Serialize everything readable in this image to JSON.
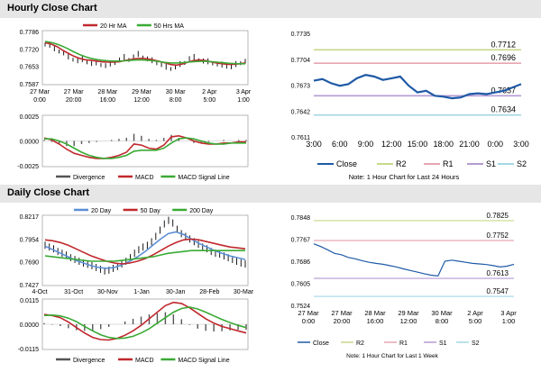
{
  "sections": {
    "hourly_title": "Hourly Close Chart",
    "daily_title": "Daily Close Chart"
  },
  "colors": {
    "close": "#1f5aa6",
    "ma20": "#c0282d",
    "ma50": "#3aaa35",
    "day20": "#5b8fd6",
    "day50": "#c0282d",
    "day200": "#3aaa35",
    "macd": "#c0282d",
    "signal": "#3aaa35",
    "divergence": "#555555",
    "r2": "#c8d98a",
    "r1": "#e7a6b1",
    "s1": "#b59bd3",
    "s2": "#a3d7e6",
    "price_bar": "#000000"
  },
  "chart_data": [
    {
      "id": "hourly_price",
      "type": "line",
      "legend": [
        {
          "name": "20 Hr MA",
          "color": "#c0282d"
        },
        {
          "name": "50 Hrs MA",
          "color": "#3aaa35"
        }
      ],
      "yticks": [
        "0.7786",
        "0.7720",
        "0.7653",
        "0.7587"
      ],
      "ylim": [
        0.7587,
        0.7786
      ],
      "xticks": [
        [
          "27 Mar",
          "0:00"
        ],
        [
          "27 Mar",
          "20:00"
        ],
        [
          "28 Mar",
          "16:00"
        ],
        [
          "29 Mar",
          "12:00"
        ],
        [
          "30 Mar",
          "8:00"
        ],
        [
          "2 Apr",
          "5:00"
        ],
        [
          "3 Apr",
          "1:00"
        ]
      ],
      "series": [
        {
          "name": "Close (bars)",
          "values": [
            0.7738,
            0.7733,
            0.772,
            0.7712,
            0.7705,
            0.769,
            0.7682,
            0.7676,
            0.768,
            0.7672,
            0.7666,
            0.7668,
            0.7662,
            0.7658,
            0.7664,
            0.767,
            0.7679,
            0.7688,
            0.7681,
            0.769,
            0.7699,
            0.769,
            0.7683,
            0.7676,
            0.7669,
            0.7662,
            0.7652,
            0.7648,
            0.7653,
            0.7662,
            0.767,
            0.7684,
            0.7688,
            0.768,
            0.7675,
            0.7672,
            0.7668,
            0.7664,
            0.766,
            0.7656,
            0.7654,
            0.7662,
            0.7669,
            0.7674
          ]
        },
        {
          "name": "20 Hr MA",
          "values": [
            0.7742,
            0.7737,
            0.7728,
            0.7715,
            0.7703,
            0.7692,
            0.7684,
            0.7679,
            0.7677,
            0.7674,
            0.7671,
            0.767,
            0.767,
            0.7672,
            0.7676,
            0.768,
            0.7683,
            0.7684,
            0.7682,
            0.7678,
            0.7673,
            0.7667,
            0.7661,
            0.7659,
            0.7663,
            0.767,
            0.7676,
            0.7678,
            0.7676,
            0.7671,
            0.7667,
            0.7664,
            0.7662,
            0.7662,
            0.7664,
            0.7667
          ]
        },
        {
          "name": "50 Hrs MA",
          "values": [
            0.7746,
            0.7743,
            0.7737,
            0.7729,
            0.7719,
            0.7708,
            0.7698,
            0.769,
            0.7684,
            0.768,
            0.7677,
            0.7675,
            0.7674,
            0.7674,
            0.7675,
            0.7677,
            0.7678,
            0.7678,
            0.7677,
            0.7675,
            0.7672,
            0.7669,
            0.7667,
            0.7667,
            0.7668,
            0.767,
            0.7672,
            0.7673,
            0.7673,
            0.7672,
            0.767,
            0.7668,
            0.7666,
            0.7665,
            0.7664,
            0.7664
          ]
        }
      ]
    },
    {
      "id": "hourly_macd",
      "type": "line",
      "yticks": [
        "0.0025",
        "0.0000",
        "-0.0025"
      ],
      "ylim": [
        -0.0025,
        0.0025
      ],
      "legend": [
        {
          "name": "Divergence",
          "color": "#555555"
        },
        {
          "name": "MACD",
          "color": "#c0282d"
        },
        {
          "name": "MACD Signal Line",
          "color": "#3aaa35"
        }
      ],
      "series": [
        {
          "name": "MACD",
          "values": [
            0.0003,
            0.0001,
            -0.0003,
            -0.0008,
            -0.0012,
            -0.0014,
            -0.0016,
            -0.0017,
            -0.0017,
            -0.0016,
            -0.0014,
            -0.0011,
            -0.0003,
            -0.0004,
            -0.0007,
            -0.0008,
            -0.0004,
            0.0004,
            0.0005,
            0.0003,
            0.0,
            -0.0002,
            -0.0003,
            -0.0003,
            -0.0002,
            -0.0002,
            -0.0001,
            -0.0001
          ]
        },
        {
          "name": "MACD Signal Line",
          "values": [
            0.0002,
            0.0002,
            0.0,
            -0.0003,
            -0.0007,
            -0.0011,
            -0.0014,
            -0.0016,
            -0.0017,
            -0.0017,
            -0.0016,
            -0.0014,
            -0.001,
            -0.0009,
            -0.0009,
            -0.0009,
            -0.0007,
            -0.0002,
            0.0002,
            0.0003,
            0.0002,
            0.0,
            -0.0002,
            -0.0003,
            -0.0003,
            -0.0002,
            -0.0002,
            -0.0002
          ]
        },
        {
          "name": "Divergence",
          "values": [
            0.0001,
            -0.0001,
            -0.0003,
            -0.0005,
            -0.0005,
            -0.0003,
            -0.0002,
            -0.0001,
            0.0,
            0.0001,
            0.0002,
            0.0003,
            0.0007,
            0.0005,
            0.0002,
            0.0001,
            0.0003,
            0.0006,
            0.0003,
            0.0,
            -0.0002,
            -0.0002,
            -0.0001,
            0.0,
            0.0001,
            0.0,
            0.0001,
            0.0001
          ]
        }
      ]
    },
    {
      "id": "hourly_pivot",
      "type": "line",
      "title": "",
      "yticks": [
        "0.7735",
        "0.7704",
        "0.7673",
        "0.7642",
        "0.7611"
      ],
      "ylim": [
        0.7611,
        0.7735
      ],
      "xticks": [
        "3:00",
        "6:00",
        "9:00",
        "12:00",
        "15:00",
        "18:00",
        "21:00",
        "0:00",
        "3:00"
      ],
      "levels": [
        {
          "name": "R2",
          "value": 0.7712,
          "label": "0.7712",
          "color": "#c8d98a"
        },
        {
          "name": "R1",
          "value": 0.7696,
          "label": "0.7696",
          "color": "#e7a6b1"
        },
        {
          "name": "S1",
          "value": 0.7657,
          "label": "0.7657",
          "color": "#b59bd3"
        },
        {
          "name": "S2",
          "value": 0.7634,
          "label": "0.7634",
          "color": "#a3d7e6"
        }
      ],
      "series": [
        {
          "name": "Close",
          "values": [
            0.7675,
            0.7677,
            0.7672,
            0.7669,
            0.7671,
            0.7678,
            0.7682,
            0.768,
            0.7676,
            0.7678,
            0.768,
            0.7669,
            0.7661,
            0.7663,
            0.7657,
            0.7656,
            0.7654,
            0.7655,
            0.7659,
            0.766,
            0.7659,
            0.7661,
            0.7663,
            0.7667,
            0.7671
          ]
        }
      ],
      "legend": [
        "Close",
        "R2",
        "R1",
        "S1",
        "S2"
      ],
      "note": "Note: 1 Hour Chart for Last 24 Hours"
    },
    {
      "id": "daily_price",
      "type": "line",
      "legend": [
        {
          "name": "20 Day",
          "color": "#5b8fd6"
        },
        {
          "name": "50 Day",
          "color": "#c0282d"
        },
        {
          "name": "200 Day",
          "color": "#3aaa35"
        }
      ],
      "yticks": [
        "0.8217",
        "0.7954",
        "0.7690",
        "0.7427"
      ],
      "ylim": [
        0.7427,
        0.8217
      ],
      "xticks": [
        "4-Oct",
        "31-Oct",
        "30-Nov",
        "1-Jan",
        "30-Jan",
        "28-Feb",
        "30-Mar"
      ],
      "series": [
        {
          "name": "Close (bars)",
          "values": [
            0.788,
            0.786,
            0.784,
            0.781,
            0.779,
            0.777,
            0.774,
            0.772,
            0.77,
            0.768,
            0.7665,
            0.765,
            0.763,
            0.761,
            0.759,
            0.76,
            0.762,
            0.764,
            0.767,
            0.77,
            0.774,
            0.779,
            0.783,
            0.786,
            0.788,
            0.792,
            0.798,
            0.805,
            0.812,
            0.816,
            0.813,
            0.806,
            0.801,
            0.798,
            0.795,
            0.792,
            0.789,
            0.786,
            0.784,
            0.781,
            0.779,
            0.778,
            0.776,
            0.774,
            0.772,
            0.77,
            0.768,
            0.767
          ]
        },
        {
          "name": "20 Day",
          "values": [
            0.787,
            0.783,
            0.779,
            0.775,
            0.771,
            0.768,
            0.765,
            0.763,
            0.762,
            0.763,
            0.766,
            0.77,
            0.775,
            0.781,
            0.788,
            0.795,
            0.801,
            0.803,
            0.8,
            0.795,
            0.79,
            0.786,
            0.782,
            0.779,
            0.776,
            0.774,
            0.772
          ]
        },
        {
          "name": "50 Day",
          "values": [
            0.794,
            0.793,
            0.791,
            0.788,
            0.784,
            0.78,
            0.776,
            0.773,
            0.77,
            0.768,
            0.767,
            0.768,
            0.77,
            0.773,
            0.777,
            0.782,
            0.787,
            0.791,
            0.794,
            0.795,
            0.794,
            0.792,
            0.79,
            0.788,
            0.786,
            0.785,
            0.784
          ]
        },
        {
          "name": "200 Day",
          "values": [
            0.776,
            0.775,
            0.774,
            0.773,
            0.772,
            0.771,
            0.77,
            0.77,
            0.77,
            0.77,
            0.771,
            0.772,
            0.773,
            0.774,
            0.775,
            0.777,
            0.779,
            0.78,
            0.781,
            0.782,
            0.782,
            0.782,
            0.782,
            0.782,
            0.782,
            0.782,
            0.782
          ]
        }
      ]
    },
    {
      "id": "daily_macd",
      "type": "line",
      "yticks": [
        "0.0115",
        "0.0000",
        "-0.0115"
      ],
      "ylim": [
        -0.0115,
        0.0115
      ],
      "legend": [
        {
          "name": "Divergence",
          "color": "#555555"
        },
        {
          "name": "MACD",
          "color": "#c0282d"
        },
        {
          "name": "MACD Signal Line",
          "color": "#3aaa35"
        }
      ],
      "series": [
        {
          "name": "MACD",
          "values": [
            0.0045,
            0.004,
            0.003,
            0.001,
            -0.0015,
            -0.004,
            -0.006,
            -0.007,
            -0.0072,
            -0.0065,
            -0.005,
            -0.003,
            -0.0005,
            0.0025,
            0.0055,
            0.0085,
            0.01,
            0.0095,
            0.0075,
            0.005,
            0.0025,
            0.0005,
            -0.001,
            -0.002,
            -0.003,
            -0.004
          ]
        },
        {
          "name": "MACD Signal Line",
          "values": [
            0.004,
            0.0042,
            0.0038,
            0.0028,
            0.0012,
            -0.001,
            -0.003,
            -0.0048,
            -0.006,
            -0.0065,
            -0.0063,
            -0.0055,
            -0.004,
            -0.002,
            0.0005,
            0.003,
            0.0055,
            0.0072,
            0.0078,
            0.007,
            0.0055,
            0.0038,
            0.0022,
            0.0008,
            -0.0005,
            -0.0015
          ]
        },
        {
          "name": "Divergence",
          "values": [
            0.0005,
            -0.0002,
            -0.0008,
            -0.0018,
            -0.0027,
            -0.003,
            -0.003,
            -0.0022,
            -0.0012,
            0.0,
            0.0013,
            0.0025,
            0.0035,
            0.0045,
            0.005,
            0.0055,
            0.0045,
            0.0023,
            -0.0003,
            -0.002,
            -0.003,
            -0.0033,
            -0.0032,
            -0.0028,
            -0.0025,
            -0.0025
          ]
        }
      ]
    },
    {
      "id": "daily_pivot",
      "type": "line",
      "yticks": [
        "0.7848",
        "0.7767",
        "0.7686",
        "0.7605",
        "0.7524"
      ],
      "ylim": [
        0.7524,
        0.7848
      ],
      "xticks": [
        [
          "27 Mar",
          "0:00"
        ],
        [
          "27 Mar",
          "20:00"
        ],
        [
          "28 Mar",
          "16:00"
        ],
        [
          "29 Mar",
          "12:00"
        ],
        [
          "30 Mar",
          "8:00"
        ],
        [
          "2 Apr",
          "5:00"
        ],
        [
          "3 Apr",
          "1:00"
        ]
      ],
      "levels": [
        {
          "name": "R2",
          "value": 0.7825,
          "label": "0.7825",
          "color": "#c8d98a"
        },
        {
          "name": "R1",
          "value": 0.7752,
          "label": "0.7752",
          "color": "#e7a6b1"
        },
        {
          "name": "S1",
          "value": 0.7613,
          "label": "0.7613",
          "color": "#b59bd3"
        },
        {
          "name": "S2",
          "value": 0.7547,
          "label": "0.7547",
          "color": "#a3d7e6"
        }
      ],
      "series": [
        {
          "name": "Close",
          "values": [
            0.774,
            0.773,
            0.7718,
            0.7705,
            0.77,
            0.769,
            0.7685,
            0.7678,
            0.7672,
            0.7668,
            0.7665,
            0.766,
            0.7655,
            0.7648,
            0.7642,
            0.7636,
            0.763,
            0.7625,
            0.7622,
            0.7676,
            0.768,
            0.7676,
            0.7672,
            0.7668,
            0.7666,
            0.7664,
            0.766,
            0.7655,
            0.7658,
            0.7665
          ]
        }
      ],
      "legend": [
        "Close",
        "R2",
        "R1",
        "S1",
        "S2"
      ],
      "note": "Note: 1 Hour Chart for Last 1 Week"
    }
  ]
}
